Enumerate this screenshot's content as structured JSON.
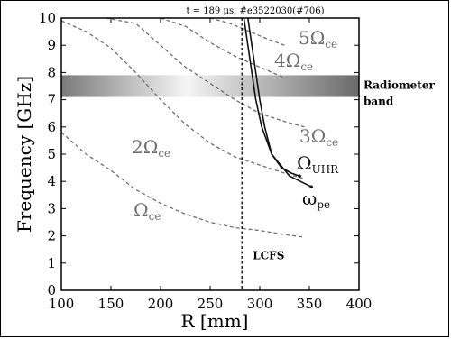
{
  "chart_data": {
    "type": "line",
    "title": "t = 189 μs, #e3522030(#706)",
    "xlabel": "R [mm]",
    "ylabel": "Frequency [GHz]",
    "xlim": [
      100,
      400
    ],
    "ylim": [
      0,
      10
    ],
    "xticks": [
      "100",
      "150",
      "200",
      "250",
      "300",
      "350",
      "400"
    ],
    "yticks": [
      "0",
      "1",
      "2",
      "3",
      "4",
      "5",
      "6",
      "7",
      "8",
      "9",
      "10"
    ],
    "grid": false,
    "band": {
      "label": "Radiometer band",
      "ymin": 7.1,
      "ymax": 7.9
    },
    "lcfs": {
      "label": "LCFS",
      "x": 282
    },
    "series": [
      {
        "name": "Ωce",
        "style": "dashed",
        "x": [
          100,
          125,
          150,
          175,
          200,
          225,
          250,
          275,
          300,
          325,
          345
        ],
        "y": [
          5.8,
          5.0,
          4.4,
          3.7,
          3.2,
          2.8,
          2.5,
          2.3,
          2.2,
          2.05,
          1.95
        ]
      },
      {
        "name": "2Ωce",
        "style": "dashed",
        "x": [
          100,
          125,
          150,
          175,
          200,
          225,
          250,
          275,
          300,
          325,
          345
        ],
        "y": [
          9.9,
          9.5,
          8.9,
          8.0,
          7.0,
          6.1,
          5.4,
          4.9,
          4.6,
          4.3,
          4.1
        ]
      },
      {
        "name": "3Ωce",
        "style": "dashed",
        "x": [
          145,
          175,
          200,
          225,
          250,
          275,
          300,
          325,
          345
        ],
        "y": [
          10.0,
          9.8,
          9.0,
          8.2,
          7.6,
          7.0,
          6.5,
          6.2,
          6.0
        ]
      },
      {
        "name": "4Ωce",
        "style": "dashed",
        "x": [
          200,
          225,
          250,
          275,
          300,
          325
        ],
        "y": [
          10.0,
          9.7,
          9.1,
          8.6,
          8.2,
          7.8
        ]
      },
      {
        "name": "5Ωce",
        "style": "dashed",
        "x": [
          250,
          270,
          290,
          310,
          325
        ],
        "y": [
          10.0,
          9.8,
          9.5,
          9.2,
          9.0
        ]
      },
      {
        "name": "ΩUHR",
        "style": "solid",
        "x": [
          288,
          292,
          296,
          300,
          305,
          312,
          322,
          332,
          340
        ],
        "y": [
          10.0,
          9.0,
          8.0,
          7.0,
          6.0,
          5.0,
          4.5,
          4.3,
          4.2
        ]
      },
      {
        "name": "ωpe",
        "style": "solid",
        "x": [
          284,
          288,
          292,
          296,
          302,
          312,
          330,
          352
        ],
        "y": [
          10.0,
          9.0,
          8.0,
          7.0,
          6.0,
          5.0,
          4.2,
          3.8
        ]
      }
    ],
    "curve_labels": [
      {
        "base": "Ω",
        "sub": "ce",
        "prefix": ""
      },
      {
        "base": "Ω",
        "sub": "ce",
        "prefix": "2"
      },
      {
        "base": "Ω",
        "sub": "ce",
        "prefix": "3"
      },
      {
        "base": "Ω",
        "sub": "ce",
        "prefix": "4"
      },
      {
        "base": "Ω",
        "sub": "ce",
        "prefix": "5"
      },
      {
        "base": "Ω",
        "sub": "UHR",
        "prefix": ""
      },
      {
        "base": "ω",
        "sub": "pe",
        "prefix": ""
      }
    ]
  },
  "colors": {
    "axis": "#000000",
    "dashed": "#6e6e6e",
    "solid": "#111111",
    "band_light": "#f5f5f5",
    "band_dark": "#7a7a7a"
  }
}
